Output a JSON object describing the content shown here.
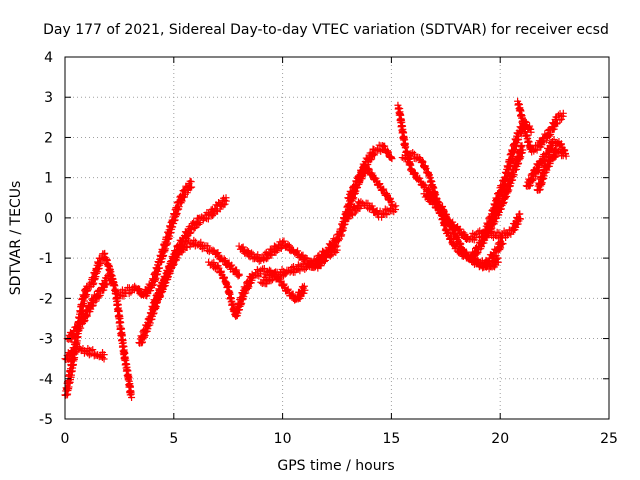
{
  "chart_data": {
    "type": "scatter",
    "title": "Day 177 of 2021, Sidereal Day-to-day VTEC variation (SDTVAR) for receiver ecsd",
    "xlabel": "GPS time / hours",
    "ylabel": "SDTVAR / TECUs",
    "xlim": [
      0,
      25
    ],
    "ylim": [
      -5,
      4
    ],
    "x_ticks": [
      "0",
      "5",
      "10",
      "15",
      "20",
      "25"
    ],
    "y_ticks": [
      "-5",
      "-4",
      "-3",
      "-2",
      "-1",
      "0",
      "1",
      "2",
      "3",
      "4"
    ],
    "grid": true,
    "marker": "+",
    "series_color": "#ff0000",
    "traces": [
      {
        "name": "trace-1",
        "x": [
          0.0,
          0.2,
          0.4,
          0.6,
          0.8,
          1.0,
          1.2,
          1.4,
          1.6,
          1.8,
          2.0,
          2.2
        ],
        "y": [
          -4.4,
          -3.9,
          -3.3,
          -2.6,
          -2.0,
          -1.7,
          -1.6,
          -1.3,
          -1.0,
          -0.9,
          -1.2,
          -1.6
        ]
      },
      {
        "name": "trace-2",
        "x": [
          0.0,
          0.3,
          0.6,
          0.9,
          1.2,
          1.5,
          1.8
        ],
        "y": [
          -3.5,
          -3.3,
          -3.2,
          -3.3,
          -3.3,
          -3.4,
          -3.4
        ]
      },
      {
        "name": "trace-3",
        "x": [
          0.1,
          0.4,
          0.7,
          1.0,
          1.3,
          1.6,
          1.9,
          2.1,
          2.3,
          2.5,
          2.7,
          2.9,
          3.0
        ],
        "y": [
          -3.0,
          -2.8,
          -2.6,
          -2.3,
          -2.0,
          -1.8,
          -1.5,
          -1.4,
          -1.8,
          -2.6,
          -3.4,
          -4.0,
          -4.4
        ]
      },
      {
        "name": "trace-4",
        "x": [
          2.4,
          2.8,
          3.2,
          3.6,
          4.0,
          4.3,
          4.6,
          4.9,
          5.2,
          5.5,
          5.8
        ],
        "y": [
          -1.9,
          -1.8,
          -1.7,
          -1.9,
          -1.6,
          -1.1,
          -0.6,
          -0.1,
          0.4,
          0.7,
          0.9
        ]
      },
      {
        "name": "trace-5",
        "x": [
          3.4,
          3.8,
          4.2,
          4.6,
          5.0,
          5.4,
          5.8,
          6.2,
          6.6,
          7.0,
          7.4
        ],
        "y": [
          -3.1,
          -2.6,
          -2.0,
          -1.5,
          -0.9,
          -0.5,
          -0.2,
          0.0,
          0.1,
          0.3,
          0.5
        ]
      },
      {
        "name": "trace-6",
        "x": [
          4.0,
          4.4,
          4.8,
          5.2,
          5.6,
          6.0,
          6.4,
          6.8,
          7.2,
          7.6,
          8.0
        ],
        "y": [
          -2.2,
          -1.7,
          -1.2,
          -0.8,
          -0.6,
          -0.6,
          -0.7,
          -0.8,
          -1.0,
          -1.2,
          -1.4
        ]
      },
      {
        "name": "trace-7",
        "x": [
          6.6,
          7.0,
          7.4,
          7.8,
          8.2,
          8.6,
          9.0,
          9.4,
          9.8,
          10.2,
          10.6,
          11.0
        ],
        "y": [
          -1.1,
          -1.2,
          -1.6,
          -2.4,
          -1.8,
          -1.4,
          -1.3,
          -1.3,
          -1.5,
          -1.8,
          -2.0,
          -1.7
        ]
      },
      {
        "name": "trace-8",
        "x": [
          8.0,
          8.5,
          9.0,
          9.5,
          10.0,
          10.5,
          11.0,
          11.5,
          12.0,
          12.5
        ],
        "y": [
          -0.7,
          -0.9,
          -1.0,
          -0.8,
          -0.6,
          -0.8,
          -1.0,
          -1.2,
          -0.9,
          -0.7
        ]
      },
      {
        "name": "trace-9",
        "x": [
          9.0,
          9.6,
          10.2,
          10.8,
          11.4,
          12.0,
          12.6,
          13.0,
          13.4,
          13.8,
          14.2,
          14.6,
          15.0
        ],
        "y": [
          -1.6,
          -1.4,
          -1.3,
          -1.2,
          -1.1,
          -0.8,
          -0.4,
          0.3,
          0.9,
          1.4,
          1.7,
          1.8,
          1.5
        ]
      },
      {
        "name": "trace-10",
        "x": [
          12.8,
          13.2,
          13.6,
          14.0,
          14.4,
          14.8,
          15.2
        ],
        "y": [
          0.0,
          0.2,
          0.4,
          0.3,
          0.1,
          0.2,
          0.3
        ]
      },
      {
        "name": "trace-11",
        "x": [
          13.0,
          13.4,
          13.8,
          14.2,
          14.6,
          15.0
        ],
        "y": [
          0.5,
          0.9,
          1.3,
          1.0,
          0.7,
          0.4
        ]
      },
      {
        "name": "trace-12",
        "x": [
          15.3,
          15.6,
          15.9,
          16.2,
          16.5,
          16.8,
          17.1,
          17.4,
          17.7,
          18.0,
          18.3,
          18.6,
          18.9,
          19.2,
          19.5,
          19.8,
          20.1
        ],
        "y": [
          2.8,
          1.8,
          1.2,
          1.0,
          0.8,
          0.6,
          0.4,
          0.2,
          -0.2,
          -0.5,
          -0.8,
          -1.0,
          -1.1,
          -1.2,
          -1.0,
          -0.8,
          -0.5
        ]
      },
      {
        "name": "trace-13",
        "x": [
          15.5,
          15.9,
          16.3,
          16.7,
          17.1,
          17.5,
          17.9,
          18.3,
          18.7,
          19.1,
          19.5,
          19.9
        ],
        "y": [
          1.5,
          1.6,
          1.5,
          1.1,
          0.4,
          -0.3,
          -0.7,
          -0.9,
          -1.0,
          -1.1,
          -1.2,
          -1.0
        ]
      },
      {
        "name": "trace-14",
        "x": [
          16.5,
          16.9,
          17.3,
          17.7,
          18.1,
          18.5,
          18.9,
          19.3,
          19.7,
          20.1,
          20.5,
          20.9
        ],
        "y": [
          0.6,
          0.4,
          0.1,
          -0.1,
          -0.3,
          -0.5,
          -0.4,
          -0.3,
          -0.4,
          -0.4,
          -0.3,
          0.1
        ]
      },
      {
        "name": "trace-15",
        "x": [
          18.6,
          19.0,
          19.4,
          19.8,
          20.2,
          20.6,
          21.0
        ],
        "y": [
          -1.0,
          -0.7,
          -0.3,
          0.1,
          0.6,
          1.2,
          1.8
        ]
      },
      {
        "name": "trace-16",
        "x": [
          19.3,
          19.6,
          19.9,
          20.2,
          20.5,
          20.8,
          21.1,
          21.4
        ],
        "y": [
          -0.3,
          0.1,
          0.6,
          1.0,
          1.6,
          2.1,
          2.4,
          2.2
        ]
      },
      {
        "name": "trace-17",
        "x": [
          20.8,
          21.1,
          21.4,
          21.7,
          22.0,
          22.3,
          22.6,
          22.9
        ],
        "y": [
          2.9,
          2.2,
          1.7,
          1.8,
          2.0,
          2.2,
          2.5,
          2.6
        ]
      },
      {
        "name": "trace-18",
        "x": [
          21.2,
          21.5,
          21.8,
          22.1,
          22.4,
          22.7,
          23.0
        ],
        "y": [
          0.8,
          1.1,
          1.4,
          1.6,
          1.9,
          1.9,
          1.6
        ]
      },
      {
        "name": "trace-19",
        "x": [
          21.7,
          22.0,
          22.3,
          22.6,
          22.9
        ],
        "y": [
          0.7,
          1.2,
          1.5,
          1.7,
          1.6
        ]
      }
    ]
  }
}
